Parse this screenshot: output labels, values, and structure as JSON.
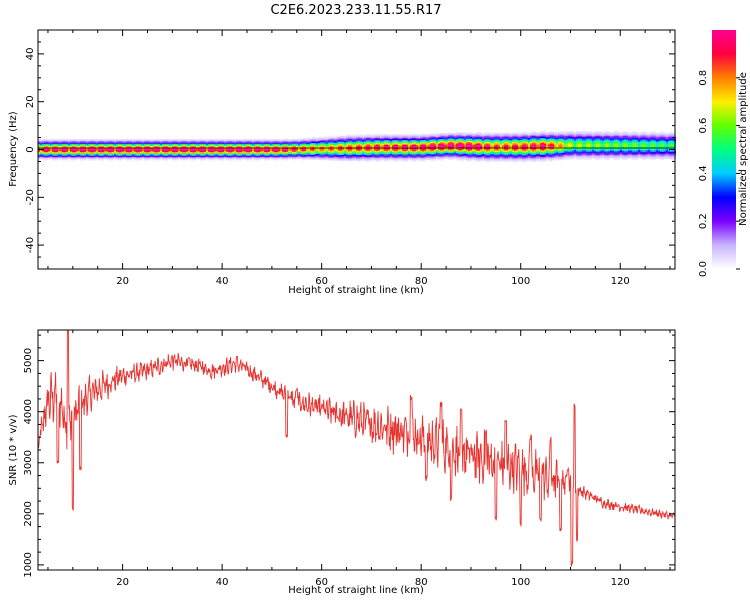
{
  "figure": {
    "title": "C2E6.2023.233.11.55.R17"
  },
  "chart_data": [
    {
      "type": "heatmap",
      "xlabel": "Height of straight line (km)",
      "ylabel": "Frequency (Hz)",
      "xlim": [
        3,
        131
      ],
      "ylim": [
        -50,
        50
      ],
      "xticks": [
        20,
        40,
        60,
        80,
        100,
        120
      ],
      "yticks": [
        -40,
        -20,
        0,
        20,
        40
      ],
      "colorbar": {
        "label": "Normalized spectral amplitude",
        "range": [
          0.0,
          1.0
        ],
        "ticks": [
          0.0,
          0.2,
          0.4,
          0.6,
          0.8
        ],
        "tick_labels": [
          "0.0",
          "0.2",
          "0.4",
          "0.6",
          "0.8"
        ],
        "colormap": [
          "#ffffff",
          "#c8b4ff",
          "#7a00ff",
          "#0000ff",
          "#00ccff",
          "#00ff80",
          "#60ff00",
          "#ffee00",
          "#ff7f00",
          "#ff0040",
          "#ff0090"
        ]
      },
      "band_center_hz": [
        [
          3,
          0.0
        ],
        [
          52,
          0.0
        ],
        [
          62,
          0.4
        ],
        [
          72,
          0.8
        ],
        [
          80,
          0.8
        ],
        [
          86,
          1.5
        ],
        [
          93,
          1.0
        ],
        [
          100,
          1.0
        ],
        [
          108,
          1.5
        ],
        [
          110,
          1.8
        ],
        [
          131,
          1.5
        ]
      ],
      "band_halfwidth_hz": [
        [
          3,
          3.5
        ],
        [
          40,
          3.5
        ],
        [
          55,
          3.5
        ],
        [
          65,
          4.5
        ],
        [
          85,
          4.5
        ],
        [
          95,
          5.0
        ],
        [
          110,
          5.0
        ],
        [
          131,
          5.0
        ]
      ],
      "peak_amplitude": [
        [
          3,
          0.9
        ],
        [
          15,
          0.95
        ],
        [
          45,
          0.95
        ],
        [
          52,
          0.9
        ],
        [
          60,
          0.75
        ],
        [
          70,
          0.85
        ],
        [
          80,
          0.9
        ],
        [
          90,
          0.95
        ],
        [
          95,
          0.8
        ],
        [
          105,
          0.9
        ],
        [
          110,
          0.6
        ],
        [
          131,
          0.5
        ]
      ]
    },
    {
      "type": "line",
      "xlabel": "Height of straight line (km)",
      "ylabel": "SNR (10 * v/v)",
      "xlim": [
        3,
        131
      ],
      "ylim": [
        900,
        5600
      ],
      "xticks": [
        20,
        40,
        60,
        80,
        100,
        120
      ],
      "yticks": [
        1000,
        2000,
        3000,
        4000,
        5000
      ],
      "series": [
        {
          "color": "#e8322e",
          "trend": [
            [
              3,
              3300
            ],
            [
              5,
              4200
            ],
            [
              7,
              4400
            ],
            [
              8.5,
              3800
            ],
            [
              10,
              3900
            ],
            [
              13,
              4300
            ],
            [
              16,
              4500
            ],
            [
              20,
              4700
            ],
            [
              25,
              4800
            ],
            [
              30,
              5000
            ],
            [
              35,
              4900
            ],
            [
              38,
              4800
            ],
            [
              43,
              4950
            ],
            [
              47,
              4700
            ],
            [
              50,
              4500
            ],
            [
              53,
              4300
            ],
            [
              55,
              4200
            ],
            [
              60,
              4050
            ],
            [
              65,
              3900
            ],
            [
              70,
              3750
            ],
            [
              75,
              3650
            ],
            [
              80,
              3500
            ],
            [
              85,
              3300
            ],
            [
              90,
              3150
            ],
            [
              95,
              3000
            ],
            [
              100,
              2900
            ],
            [
              105,
              2700
            ],
            [
              109,
              2600
            ],
            [
              111,
              2500
            ],
            [
              113,
              2400
            ],
            [
              117,
              2200
            ],
            [
              125,
              2050
            ],
            [
              131,
              1950
            ]
          ],
          "noise_amplitude": [
            [
              3,
              300
            ],
            [
              6,
              700
            ],
            [
              11,
              500
            ],
            [
              20,
              250
            ],
            [
              35,
              200
            ],
            [
              50,
              200
            ],
            [
              62,
              350
            ],
            [
              75,
              550
            ],
            [
              90,
              650
            ],
            [
              100,
              600
            ],
            [
              108,
              500
            ],
            [
              111,
              150
            ],
            [
              131,
              80
            ]
          ],
          "spikes": [
            [
              9,
              5600
            ],
            [
              10,
              2100
            ],
            [
              11.5,
              2900
            ],
            [
              7,
              3000
            ],
            [
              53,
              3550
            ],
            [
              55,
              4450
            ],
            [
              78,
              4300
            ],
            [
              81,
              2700
            ],
            [
              84,
              4150
            ],
            [
              86,
              2300
            ],
            [
              88,
              4000
            ],
            [
              93,
              3600
            ],
            [
              95,
              1900
            ],
            [
              97,
              3800
            ],
            [
              100,
              1800
            ],
            [
              102,
              3500
            ],
            [
              104,
              1900
            ],
            [
              106,
              3450
            ],
            [
              108,
              1700
            ],
            [
              109.5,
              2900
            ],
            [
              110.3,
              1000
            ],
            [
              110.8,
              4150
            ],
            [
              111.3,
              1500
            ]
          ]
        }
      ]
    }
  ]
}
